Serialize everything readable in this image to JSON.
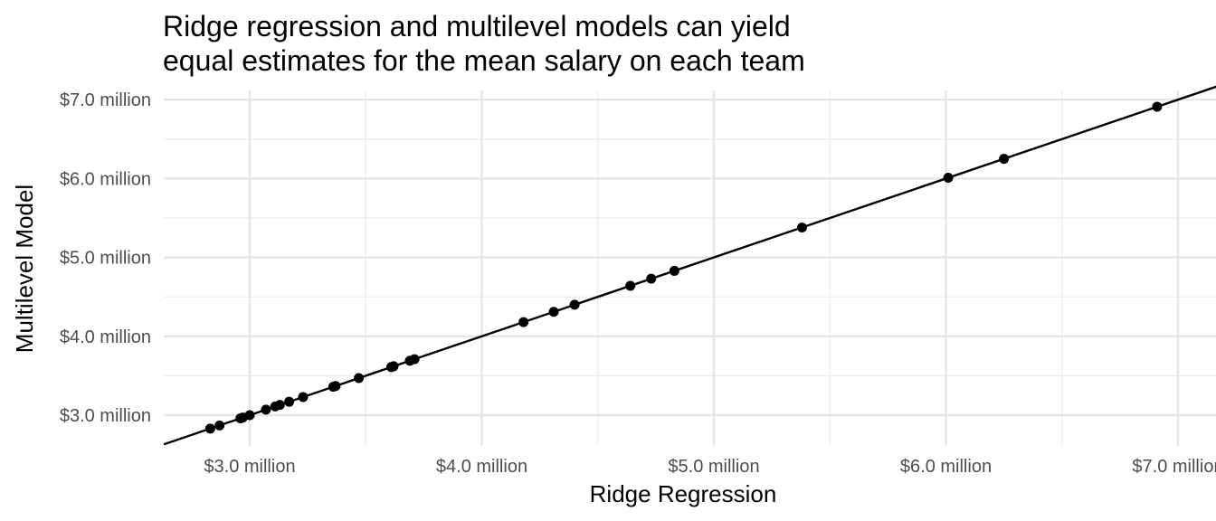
{
  "chart_data": {
    "type": "scatter",
    "title_line1": "Ridge regression and multilevel models can yield",
    "title_line2": "equal estimates for the mean salary on each team",
    "xlabel": "Ridge Regression",
    "ylabel": "Multilevel Model",
    "x_ticks": [
      3.0,
      4.0,
      5.0,
      6.0,
      7.0
    ],
    "x_tick_labels": [
      "$3.0 million",
      "$4.0 million",
      "$5.0 million",
      "$6.0 million",
      "$7.0 million"
    ],
    "y_ticks": [
      3.0,
      4.0,
      5.0,
      6.0,
      7.0
    ],
    "y_tick_labels": [
      "$3.0 million",
      "$4.0 million",
      "$5.0 million",
      "$6.0 million",
      "$7.0 million"
    ],
    "xlim": [
      2.63,
      7.12
    ],
    "ylim": [
      2.63,
      7.12
    ],
    "grid": true,
    "reference_line": "y = x",
    "points": [
      {
        "x": 2.83,
        "y": 2.83
      },
      {
        "x": 2.87,
        "y": 2.87
      },
      {
        "x": 2.96,
        "y": 2.96
      },
      {
        "x": 2.97,
        "y": 2.97
      },
      {
        "x": 3.0,
        "y": 3.0
      },
      {
        "x": 3.07,
        "y": 3.07
      },
      {
        "x": 3.11,
        "y": 3.11
      },
      {
        "x": 3.13,
        "y": 3.13
      },
      {
        "x": 3.17,
        "y": 3.17
      },
      {
        "x": 3.23,
        "y": 3.23
      },
      {
        "x": 3.36,
        "y": 3.36
      },
      {
        "x": 3.37,
        "y": 3.37
      },
      {
        "x": 3.47,
        "y": 3.47
      },
      {
        "x": 3.61,
        "y": 3.61
      },
      {
        "x": 3.62,
        "y": 3.62
      },
      {
        "x": 3.69,
        "y": 3.69
      },
      {
        "x": 3.71,
        "y": 3.71
      },
      {
        "x": 4.18,
        "y": 4.18
      },
      {
        "x": 4.31,
        "y": 4.31
      },
      {
        "x": 4.4,
        "y": 4.4
      },
      {
        "x": 4.64,
        "y": 4.64
      },
      {
        "x": 4.73,
        "y": 4.73
      },
      {
        "x": 4.83,
        "y": 4.83
      },
      {
        "x": 5.38,
        "y": 5.38
      },
      {
        "x": 6.01,
        "y": 6.01
      },
      {
        "x": 6.25,
        "y": 6.25
      },
      {
        "x": 6.91,
        "y": 6.91
      }
    ]
  }
}
